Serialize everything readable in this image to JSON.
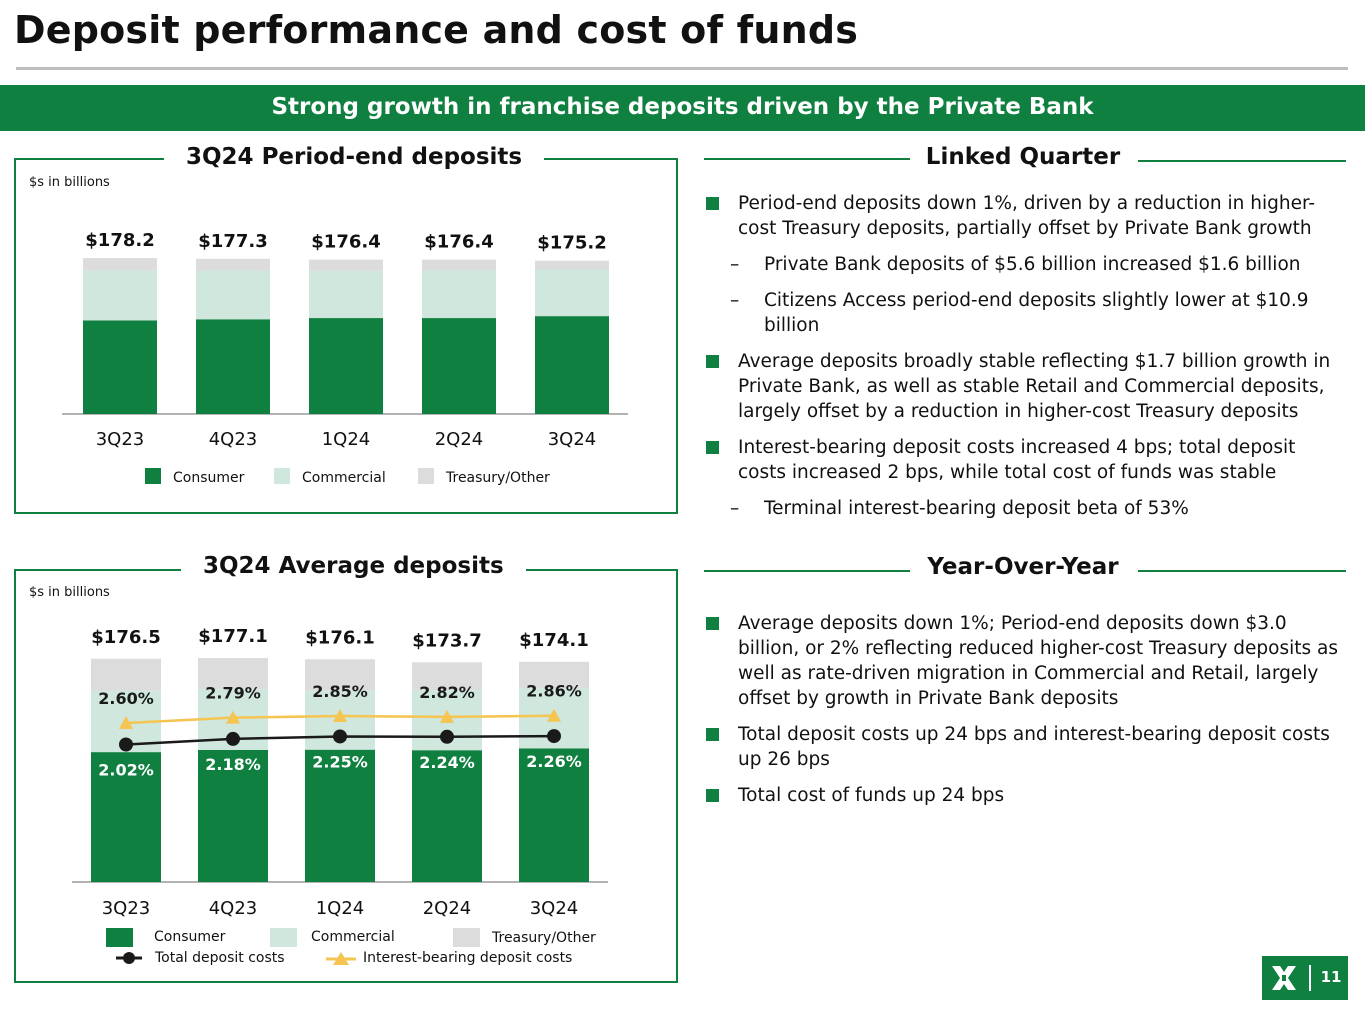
{
  "title": "Deposit performance and cost of funds",
  "banner": "Strong growth in franchise deposits driven by the Private Bank",
  "colors": {
    "consumer": "#0f8040",
    "commercial": "#cfe7dc",
    "treasury": "#dcdcdc",
    "total_cost_line": "#1a1a1a",
    "ib_cost_line": "#f5c451"
  },
  "period_end": {
    "panel_title": "3Q24 Period-end deposits",
    "units": "$s in billions",
    "chart_data": {
      "type": "bar",
      "stacked": true,
      "categories": [
        "3Q23",
        "4Q23",
        "1Q24",
        "2Q24",
        "3Q24"
      ],
      "totals": [
        "$178.2",
        "$177.3",
        "$176.4",
        "$176.4",
        "$175.2"
      ],
      "total_values": [
        178.2,
        177.3,
        176.4,
        176.4,
        175.2
      ],
      "series": [
        {
          "name": "Consumer",
          "values": [
            106.9,
            108.2,
            109.6,
            109.6,
            111.8
          ]
        },
        {
          "name": "Commercial",
          "values": [
            57.1,
            55.7,
            54.1,
            54.4,
            53.3
          ]
        },
        {
          "name": "Treasury/Other",
          "values": [
            14.2,
            13.4,
            12.7,
            12.4,
            10.1
          ]
        }
      ],
      "ylim": [
        0,
        178.2
      ]
    }
  },
  "average": {
    "panel_title": "3Q24 Average deposits",
    "units": "$s in billions",
    "chart_data": {
      "type": "bar+line",
      "stacked": true,
      "categories": [
        "3Q23",
        "4Q23",
        "1Q24",
        "2Q24",
        "3Q24"
      ],
      "totals": [
        "$176.5",
        "$177.1",
        "$176.1",
        "$173.7",
        "$174.1"
      ],
      "total_values": [
        176.5,
        177.1,
        176.1,
        173.7,
        174.1
      ],
      "series": [
        {
          "name": "Consumer",
          "values": [
            102.7,
            104.4,
            104.6,
            104.2,
            105.6
          ]
        },
        {
          "name": "Commercial",
          "values": [
            48.6,
            48.1,
            46.9,
            47.5,
            47.5
          ]
        },
        {
          "name": "Treasury/Other",
          "values": [
            25.2,
            24.6,
            24.6,
            22.0,
            21.0
          ]
        }
      ],
      "lines": [
        {
          "name": "Total deposit costs",
          "values": [
            2.02,
            2.18,
            2.25,
            2.24,
            2.26
          ],
          "labels": [
            "2.02%",
            "2.18%",
            "2.25%",
            "2.24%",
            "2.26%"
          ]
        },
        {
          "name": "Interest-bearing deposit costs",
          "values": [
            2.6,
            2.79,
            2.85,
            2.82,
            2.86
          ],
          "labels": [
            "2.60%",
            "2.79%",
            "2.85%",
            "2.82%",
            "2.86%"
          ]
        }
      ],
      "legend": [
        "Consumer",
        "Commercial",
        "Treasury/Other",
        "Total deposit costs",
        "Interest-bearing deposit costs"
      ]
    }
  },
  "linked_quarter": {
    "heading": "Linked Quarter",
    "items": [
      {
        "level": 1,
        "text": "Period-end deposits down 1%, driven by a reduction in higher-cost Treasury deposits, partially offset by Private Bank growth"
      },
      {
        "level": 2,
        "text": "Private Bank deposits of $5.6 billion increased $1.6 billion"
      },
      {
        "level": 2,
        "text": "Citizens Access period-end deposits slightly lower at $10.9 billion"
      },
      {
        "level": 1,
        "text": "Average deposits broadly stable reflecting $1.7 billion growth in Private Bank, as well as stable Retail and Commercial deposits, largely offset by a reduction in higher-cost Treasury deposits"
      },
      {
        "level": 1,
        "text": "Interest-bearing deposit costs increased 4 bps; total deposit costs increased 2 bps, while total cost of funds was stable"
      },
      {
        "level": 2,
        "text": "Terminal interest-bearing deposit beta of 53%"
      }
    ]
  },
  "yoy": {
    "heading": "Year-Over-Year",
    "items": [
      {
        "level": 1,
        "text": "Average deposits down 1%; Period-end deposits down $3.0 billion, or 2% reflecting reduced higher-cost Treasury deposits as well as rate-driven migration in Commercial and Retail, largely offset by growth in Private Bank deposits"
      },
      {
        "level": 1,
        "text": "Total deposit costs up 24 bps and interest-bearing deposit costs up 26 bps"
      },
      {
        "level": 1,
        "text": "Total cost of funds up 24 bps"
      }
    ]
  },
  "page_number": "11"
}
